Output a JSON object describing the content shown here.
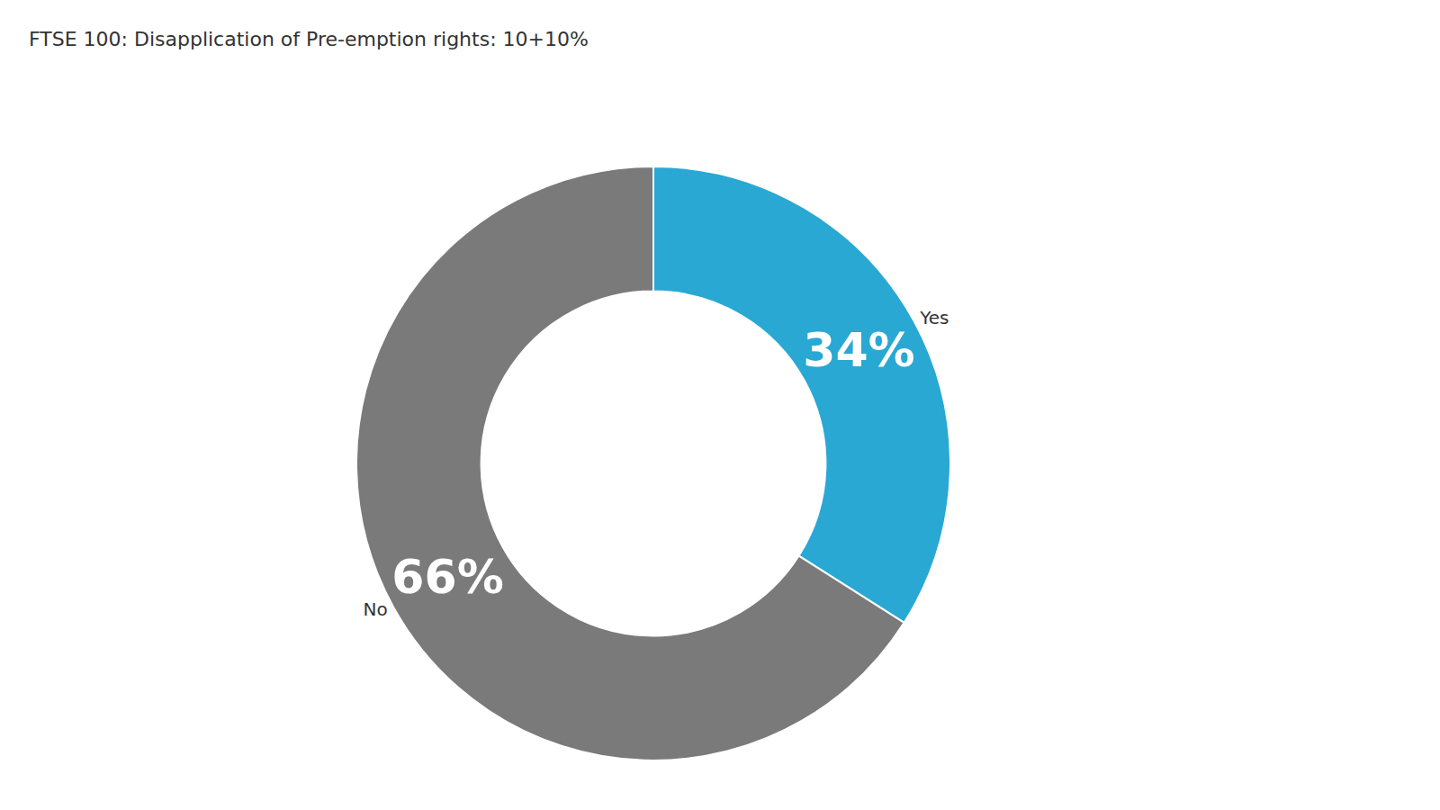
{
  "chart_data": {
    "type": "pie",
    "title": "FTSE 100: Disapplication of Pre-emption rights: 10+10%",
    "categories": [
      "Yes",
      "No"
    ],
    "values": [
      34,
      66
    ],
    "value_labels": [
      "34%",
      "66%"
    ],
    "colors": [
      "#29a8d4",
      "#7a7a7a"
    ],
    "data_labels": true
  }
}
